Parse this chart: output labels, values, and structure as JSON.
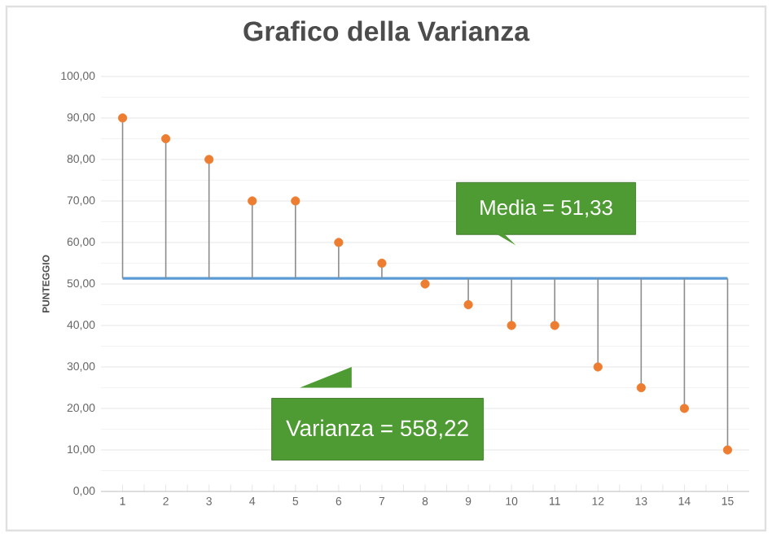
{
  "chart_data": {
    "type": "lollipop",
    "title": "Grafico della Varianza",
    "ylabel": "PUNTEGGIO",
    "categories": [
      "1",
      "2",
      "3",
      "4",
      "5",
      "6",
      "7",
      "8",
      "9",
      "10",
      "11",
      "12",
      "13",
      "14",
      "15"
    ],
    "series": [
      {
        "color": "#ed7d31",
        "values": [
          90,
          85,
          80,
          70,
          70,
          60,
          55,
          50,
          45,
          40,
          40,
          30,
          25,
          20,
          10
        ]
      }
    ],
    "ylim": [
      0,
      100
    ],
    "yticks": [
      {
        "value": 0,
        "label": "0,00"
      },
      {
        "value": 10,
        "label": "10,00"
      },
      {
        "value": 20,
        "label": "20,00"
      },
      {
        "value": 30,
        "label": "30,00"
      },
      {
        "value": 40,
        "label": "40,00"
      },
      {
        "value": 50,
        "label": "50,00"
      },
      {
        "value": 60,
        "label": "60,00"
      },
      {
        "value": 70,
        "label": "70,00"
      },
      {
        "value": 80,
        "label": "80,00"
      },
      {
        "value": 90,
        "label": "90,00"
      },
      {
        "value": 100,
        "label": "100,00"
      }
    ],
    "ref_lines": [
      {
        "axis": "y",
        "value": 51.33,
        "label": "Media = 51,33",
        "color": "#5b9bd5"
      }
    ],
    "annotations": [
      "Varianza = 558,22"
    ],
    "grid": "y",
    "marker": "circle"
  }
}
